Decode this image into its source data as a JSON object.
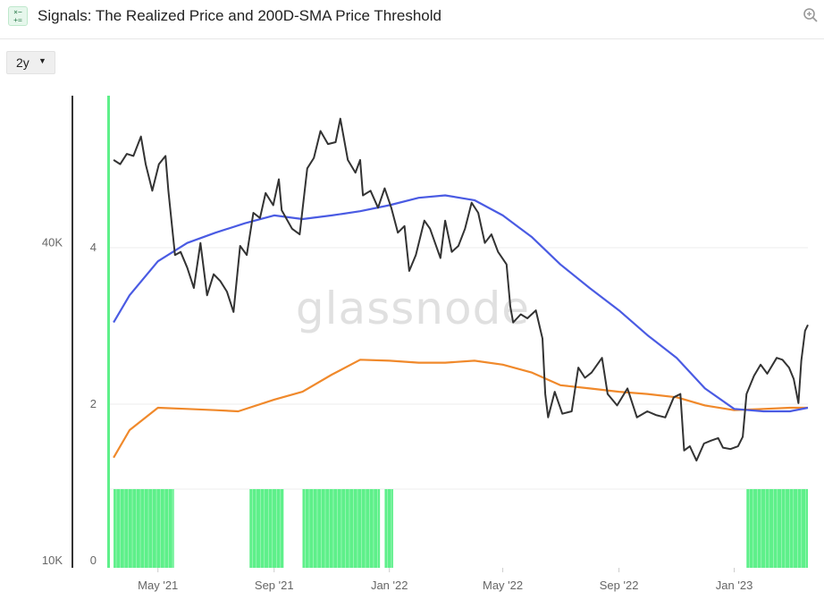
{
  "header": {
    "title": "Signals: The Realized Price and 200D-SMA Price Threshold",
    "app_icon": "calculator-icon",
    "zoom_icon": "zoom-in-icon"
  },
  "range_selector": {
    "value": "2y"
  },
  "watermark": "glassnode",
  "colors": {
    "price": "#333333",
    "sma200": "#4a5be3",
    "realized": "#f0892b",
    "signal": "#5ef08a",
    "axis": "#333333"
  },
  "chart_data": {
    "type": "line",
    "title": "Signals: The Realized Price and 200D-SMA Price Threshold",
    "x_ticks": [
      "May '21",
      "Sep '21",
      "Jan '22",
      "May '22",
      "Sep '22",
      "Jan '23"
    ],
    "x_range": [
      "2021-03-14",
      "2023-03-20"
    ],
    "y_left": {
      "scale": "log",
      "ticks": [
        "40K",
        "10K"
      ],
      "range": [
        10000,
        75000
      ]
    },
    "y_right": {
      "ticks": [
        "4",
        "2",
        "0"
      ],
      "range": [
        0,
        4
      ]
    },
    "grid": true,
    "series": [
      {
        "key": "price",
        "points": [
          [
            "2021-03-15",
            57000
          ],
          [
            "2021-03-22",
            56000
          ],
          [
            "2021-03-29",
            58500
          ],
          [
            "2021-04-05",
            58000
          ],
          [
            "2021-04-13",
            63000
          ],
          [
            "2021-04-18",
            56000
          ],
          [
            "2021-04-25",
            50000
          ],
          [
            "2021-05-02",
            56000
          ],
          [
            "2021-05-09",
            58000
          ],
          [
            "2021-05-12",
            50000
          ],
          [
            "2021-05-19",
            38000
          ],
          [
            "2021-05-25",
            38500
          ],
          [
            "2021-06-01",
            36000
          ],
          [
            "2021-06-08",
            33000
          ],
          [
            "2021-06-15",
            40000
          ],
          [
            "2021-06-22",
            32000
          ],
          [
            "2021-06-29",
            35000
          ],
          [
            "2021-07-06",
            34000
          ],
          [
            "2021-07-13",
            32500
          ],
          [
            "2021-07-20",
            29800
          ],
          [
            "2021-07-27",
            39500
          ],
          [
            "2021-08-03",
            38000
          ],
          [
            "2021-08-10",
            45500
          ],
          [
            "2021-08-17",
            44500
          ],
          [
            "2021-08-23",
            49500
          ],
          [
            "2021-08-31",
            47000
          ],
          [
            "2021-09-06",
            52500
          ],
          [
            "2021-09-09",
            46000
          ],
          [
            "2021-09-20",
            42500
          ],
          [
            "2021-09-28",
            41500
          ],
          [
            "2021-10-06",
            55000
          ],
          [
            "2021-10-13",
            57500
          ],
          [
            "2021-10-20",
            64500
          ],
          [
            "2021-10-28",
            61000
          ],
          [
            "2021-11-05",
            61500
          ],
          [
            "2021-11-10",
            68000
          ],
          [
            "2021-11-18",
            57000
          ],
          [
            "2021-11-26",
            54000
          ],
          [
            "2021-12-01",
            57000
          ],
          [
            "2021-12-04",
            49000
          ],
          [
            "2021-12-12",
            50000
          ],
          [
            "2021-12-20",
            46500
          ],
          [
            "2021-12-27",
            50500
          ],
          [
            "2022-01-03",
            46500
          ],
          [
            "2022-01-10",
            41800
          ],
          [
            "2022-01-17",
            43000
          ],
          [
            "2022-01-22",
            35500
          ],
          [
            "2022-01-29",
            38000
          ],
          [
            "2022-02-07",
            44000
          ],
          [
            "2022-02-13",
            42500
          ],
          [
            "2022-02-24",
            37500
          ],
          [
            "2022-03-01",
            44000
          ],
          [
            "2022-03-08",
            38500
          ],
          [
            "2022-03-15",
            39500
          ],
          [
            "2022-03-22",
            42500
          ],
          [
            "2022-03-29",
            47500
          ],
          [
            "2022-04-05",
            45500
          ],
          [
            "2022-04-12",
            40000
          ],
          [
            "2022-04-19",
            41500
          ],
          [
            "2022-04-26",
            38500
          ],
          [
            "2022-05-05",
            36500
          ],
          [
            "2022-05-09",
            30500
          ],
          [
            "2022-05-12",
            28500
          ],
          [
            "2022-05-20",
            29500
          ],
          [
            "2022-05-27",
            29000
          ],
          [
            "2022-06-05",
            30000
          ],
          [
            "2022-06-12",
            26600
          ],
          [
            "2022-06-15",
            21000
          ],
          [
            "2022-06-18",
            19000
          ],
          [
            "2022-06-25",
            21200
          ],
          [
            "2022-07-03",
            19300
          ],
          [
            "2022-07-13",
            19500
          ],
          [
            "2022-07-20",
            23500
          ],
          [
            "2022-07-27",
            22500
          ],
          [
            "2022-08-03",
            23000
          ],
          [
            "2022-08-14",
            24500
          ],
          [
            "2022-08-20",
            21000
          ],
          [
            "2022-08-30",
            20000
          ],
          [
            "2022-09-10",
            21500
          ],
          [
            "2022-09-20",
            19000
          ],
          [
            "2022-10-01",
            19500
          ],
          [
            "2022-10-10",
            19200
          ],
          [
            "2022-10-20",
            19000
          ],
          [
            "2022-10-29",
            20700
          ],
          [
            "2022-11-05",
            21000
          ],
          [
            "2022-11-09",
            16500
          ],
          [
            "2022-11-15",
            16800
          ],
          [
            "2022-11-22",
            15800
          ],
          [
            "2022-11-30",
            17000
          ],
          [
            "2022-12-07",
            17200
          ],
          [
            "2022-12-15",
            17400
          ],
          [
            "2022-12-20",
            16700
          ],
          [
            "2022-12-28",
            16600
          ],
          [
            "2023-01-05",
            16800
          ],
          [
            "2023-01-10",
            17500
          ],
          [
            "2023-01-14",
            21000
          ],
          [
            "2023-01-22",
            22700
          ],
          [
            "2023-01-29",
            23800
          ],
          [
            "2023-02-05",
            22900
          ],
          [
            "2023-02-15",
            24500
          ],
          [
            "2023-02-21",
            24300
          ],
          [
            "2023-02-28",
            23500
          ],
          [
            "2023-03-05",
            22400
          ],
          [
            "2023-03-10",
            20200
          ],
          [
            "2023-03-13",
            24200
          ],
          [
            "2023-03-17",
            27500
          ],
          [
            "2023-03-20",
            28200
          ]
        ]
      },
      {
        "key": "sma200",
        "points": [
          [
            "2021-03-15",
            28500
          ],
          [
            "2021-04-01",
            32000
          ],
          [
            "2021-05-01",
            37000
          ],
          [
            "2021-06-01",
            40000
          ],
          [
            "2021-07-01",
            41800
          ],
          [
            "2021-08-01",
            43500
          ],
          [
            "2021-09-01",
            45000
          ],
          [
            "2021-10-01",
            44300
          ],
          [
            "2021-11-01",
            45000
          ],
          [
            "2021-12-01",
            45800
          ],
          [
            "2022-01-01",
            47000
          ],
          [
            "2022-02-01",
            48500
          ],
          [
            "2022-03-01",
            49000
          ],
          [
            "2022-04-01",
            48000
          ],
          [
            "2022-05-01",
            45000
          ],
          [
            "2022-06-01",
            41000
          ],
          [
            "2022-07-01",
            36500
          ],
          [
            "2022-08-01",
            33000
          ],
          [
            "2022-09-01",
            30000
          ],
          [
            "2022-10-01",
            27000
          ],
          [
            "2022-11-01",
            24500
          ],
          [
            "2022-12-01",
            21500
          ],
          [
            "2023-01-01",
            19700
          ],
          [
            "2023-02-01",
            19500
          ],
          [
            "2023-03-01",
            19500
          ],
          [
            "2023-03-20",
            19800
          ]
        ]
      },
      {
        "key": "realized",
        "points": [
          [
            "2021-03-15",
            16000
          ],
          [
            "2021-04-01",
            18000
          ],
          [
            "2021-05-01",
            19800
          ],
          [
            "2021-06-01",
            19700
          ],
          [
            "2021-07-01",
            19600
          ],
          [
            "2021-07-25",
            19500
          ],
          [
            "2021-09-01",
            20500
          ],
          [
            "2021-10-01",
            21200
          ],
          [
            "2021-11-01",
            22800
          ],
          [
            "2021-12-01",
            24300
          ],
          [
            "2022-01-01",
            24200
          ],
          [
            "2022-02-01",
            24000
          ],
          [
            "2022-03-01",
            24000
          ],
          [
            "2022-04-01",
            24200
          ],
          [
            "2022-05-01",
            23800
          ],
          [
            "2022-06-01",
            23000
          ],
          [
            "2022-07-01",
            21800
          ],
          [
            "2022-08-01",
            21500
          ],
          [
            "2022-09-01",
            21200
          ],
          [
            "2022-10-01",
            21000
          ],
          [
            "2022-11-01",
            20700
          ],
          [
            "2022-12-01",
            20000
          ],
          [
            "2023-01-01",
            19600
          ],
          [
            "2023-02-01",
            19700
          ],
          [
            "2023-03-01",
            19800
          ],
          [
            "2023-03-20",
            19800
          ]
        ]
      }
    ],
    "signal_periods": [
      [
        "2021-03-15",
        "2021-05-18"
      ],
      [
        "2021-08-06",
        "2021-09-11"
      ],
      [
        "2021-10-01",
        "2021-12-22"
      ],
      [
        "2021-12-27",
        "2022-01-05"
      ],
      [
        "2023-01-14",
        "2023-03-20"
      ]
    ]
  }
}
